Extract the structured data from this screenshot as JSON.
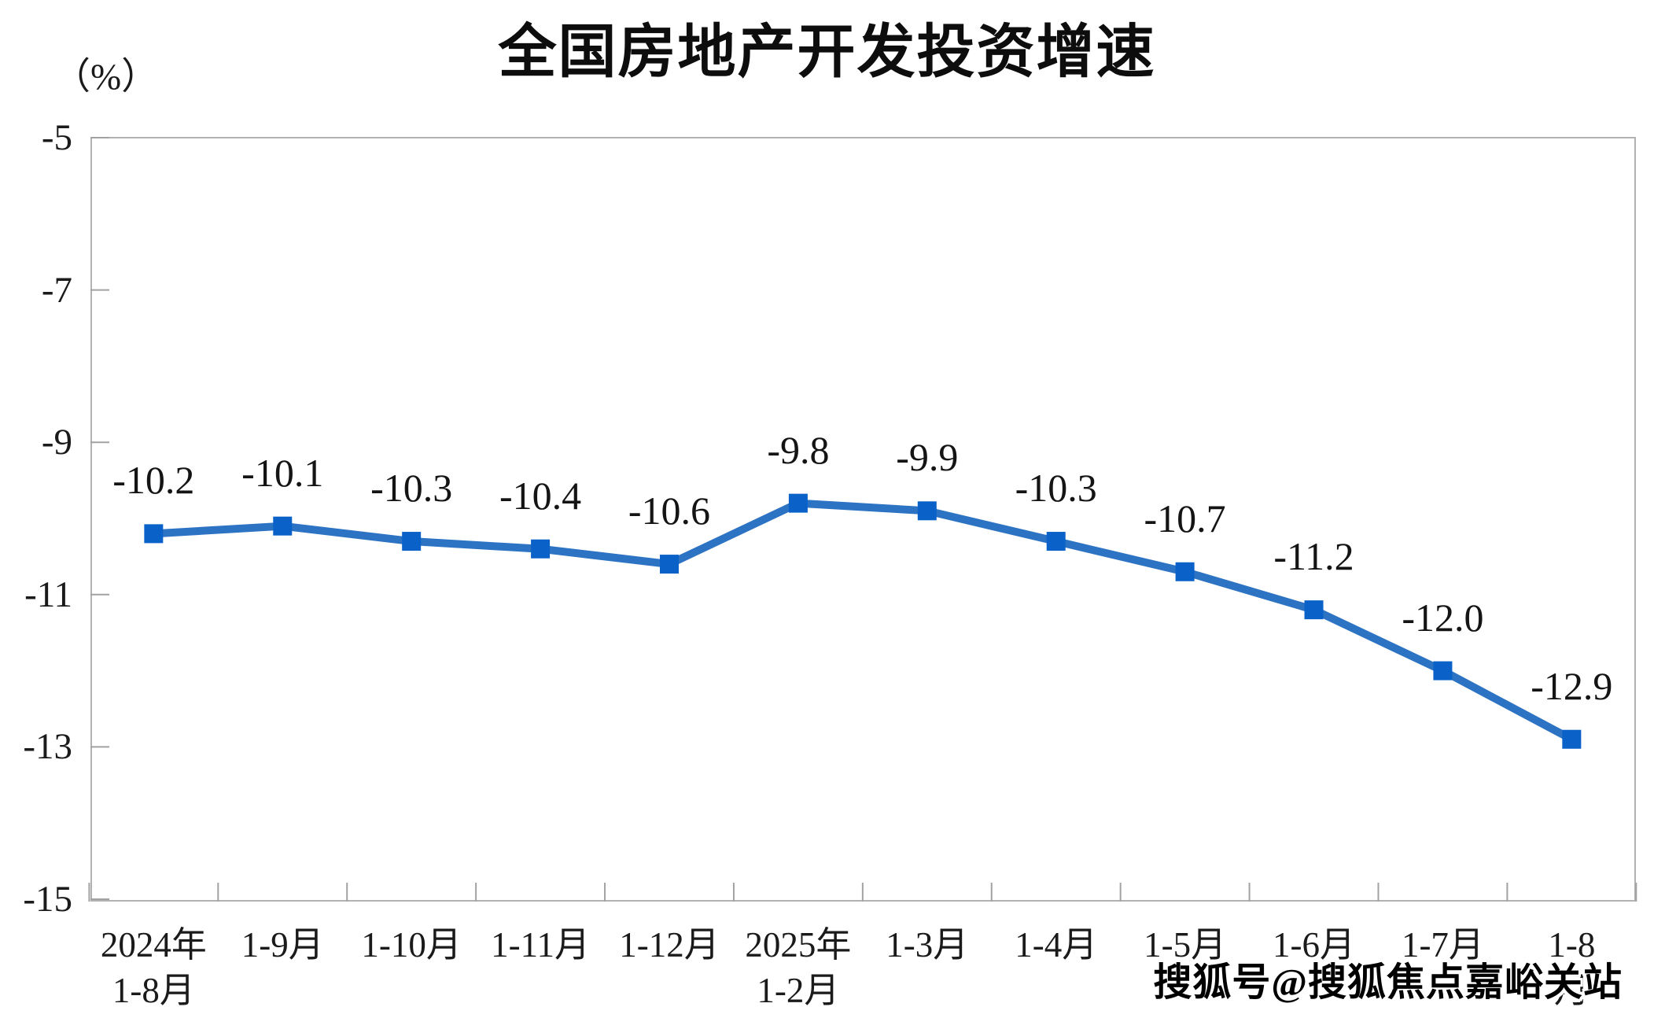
{
  "title": "全国房地产开发投资增速",
  "unit_label": "（%）",
  "watermark": "搜狐号@搜狐焦点嘉峪关站",
  "chart_data": {
    "type": "line",
    "title": "全国房地产开发投资增速",
    "ylabel": "（%）",
    "categories": [
      "2024年\n1-8月",
      "1-9月",
      "1-10月",
      "1-11月",
      "1-12月",
      "2025年\n1-2月",
      "1-3月",
      "1-4月",
      "1-5月",
      "1-6月",
      "1-7月",
      "1-8月"
    ],
    "values": [
      -10.2,
      -10.1,
      -10.3,
      -10.4,
      -10.6,
      -9.8,
      -9.9,
      -10.3,
      -10.7,
      -11.2,
      -12.0,
      -12.9
    ],
    "data_labels": [
      "-10.2",
      "-10.1",
      "-10.3",
      "-10.4",
      "-10.6",
      "-9.8",
      "-9.9",
      "-10.3",
      "-10.7",
      "-11.2",
      "-12.0",
      "-12.9"
    ],
    "y_ticks": [
      -5,
      -7,
      -9,
      -11,
      -13,
      -15
    ],
    "ylim": [
      -15,
      -5
    ],
    "grid": false,
    "legend": "none",
    "colors": {
      "line": "#2D73C3",
      "marker": "#0A62C8",
      "axis": "#b2b2b2",
      "tick": "#a2a2a2",
      "text": "#1a1a1a"
    }
  }
}
